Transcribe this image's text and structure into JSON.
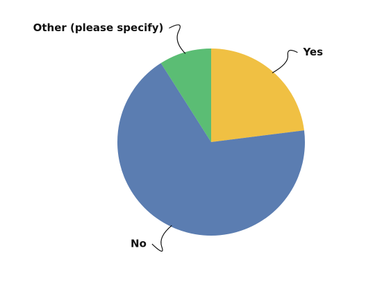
{
  "chart_data": {
    "type": "pie",
    "categories": [
      "Yes",
      "No",
      "Other (please specify)"
    ],
    "values": [
      23,
      68,
      9
    ],
    "colors": [
      "#f0c043",
      "#5b7db1",
      "#5bbd74"
    ]
  }
}
